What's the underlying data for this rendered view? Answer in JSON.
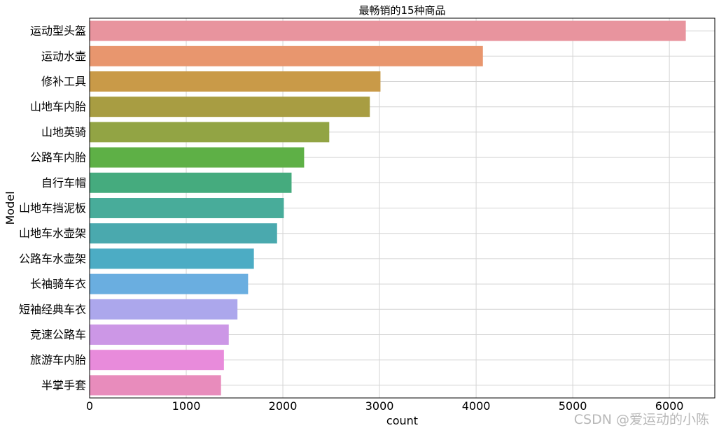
{
  "chart_data": {
    "type": "bar",
    "orientation": "horizontal",
    "title": "最畅销的15种商品",
    "xlabel": "count",
    "ylabel": "Model",
    "categories": [
      "运动型头盔",
      "运动水壶",
      "修补工具",
      "山地车内胎",
      "山地英骑",
      "公路车内胎",
      "自行车帽",
      "山地车挡泥板",
      "山地车水壶架",
      "公路车水壶架",
      "长袖骑车衣",
      "短袖经典车衣",
      "竞速公路车",
      "旅游车内胎",
      "半掌手套"
    ],
    "values": [
      6170,
      4070,
      3010,
      2900,
      2480,
      2220,
      2090,
      2010,
      1940,
      1700,
      1640,
      1530,
      1440,
      1390,
      1360
    ],
    "colors": [
      "#e8949e",
      "#e8966e",
      "#c99a48",
      "#a89d42",
      "#92a444",
      "#5eb046",
      "#45ab7e",
      "#48ac9a",
      "#4aa9ae",
      "#4cacc4",
      "#6aaee0",
      "#aca7ec",
      "#cc97e6",
      "#e88bdb",
      "#e88cbc"
    ],
    "xlim": [
      0,
      6470
    ],
    "xticks": [
      0,
      1000,
      2000,
      3000,
      4000,
      5000,
      6000
    ],
    "grid": true,
    "legend": "none"
  },
  "watermark": "CSDN @爱运动的小陈"
}
